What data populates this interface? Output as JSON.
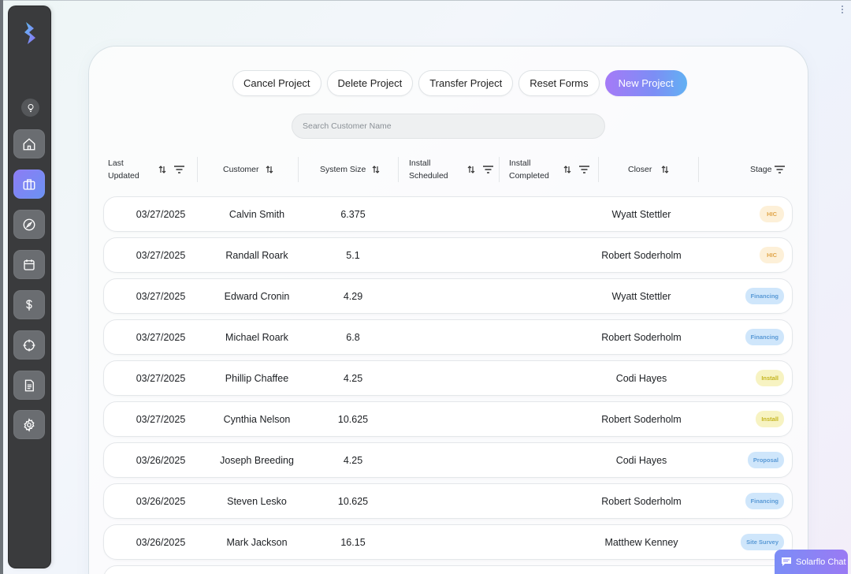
{
  "actions": {
    "cancel": "Cancel Project",
    "delete": "Delete Project",
    "transfer": "Transfer Project",
    "reset": "Reset Forms",
    "new": "New Project"
  },
  "search": {
    "placeholder": "Search Customer Name"
  },
  "columns": {
    "last_updated": "Last\nUpdated",
    "customer": "Customer",
    "system_size": "System Size",
    "install_scheduled": "Install\nScheduled",
    "install_completed": "Install\nCompleted",
    "closer": "Closer",
    "stage": "Stage"
  },
  "rows": [
    {
      "date": "03/27/2025",
      "customer": "Calvin Smith",
      "size": "6.375",
      "closer": "Wyatt Stettler",
      "stage": "HIC"
    },
    {
      "date": "03/27/2025",
      "customer": "Randall Roark",
      "size": "5.1",
      "closer": "Robert Soderholm",
      "stage": "HIC"
    },
    {
      "date": "03/27/2025",
      "customer": "Edward Cronin",
      "size": "4.29",
      "closer": "Wyatt Stettler",
      "stage": "Financing"
    },
    {
      "date": "03/27/2025",
      "customer": "Michael Roark",
      "size": "6.8",
      "closer": "Robert Soderholm",
      "stage": "Financing"
    },
    {
      "date": "03/27/2025",
      "customer": "Phillip Chaffee",
      "size": "4.25",
      "closer": "Codi Hayes",
      "stage": "Install"
    },
    {
      "date": "03/27/2025",
      "customer": "Cynthia Nelson",
      "size": "10.625",
      "closer": "Robert Soderholm",
      "stage": "Install"
    },
    {
      "date": "03/26/2025",
      "customer": "Joseph Breeding",
      "size": "4.25",
      "closer": "Codi Hayes",
      "stage": "Proposal"
    },
    {
      "date": "03/26/2025",
      "customer": "Steven Lesko",
      "size": "10.625",
      "closer": "Robert Soderholm",
      "stage": "Financing"
    },
    {
      "date": "03/26/2025",
      "customer": "Mark Jackson",
      "size": "16.15",
      "closer": "Matthew Kenney",
      "stage": "Site Survey"
    }
  ],
  "chat": {
    "label": "Solarflo Chat"
  },
  "colors": {
    "accent": "#8d7cf4",
    "sidebar": "#3a3b3d",
    "hic": "#e0a54a",
    "financing": "#5a9ad6",
    "install": "#c4b520"
  },
  "icons": [
    "logo-icon",
    "lightbulb-icon",
    "home-icon",
    "briefcase-icon",
    "compass-icon",
    "calendar-icon",
    "dollar-icon",
    "target-icon",
    "document-icon",
    "gear-icon",
    "sort-icon",
    "filter-icon",
    "chat-icon",
    "kebab-menu-icon"
  ]
}
